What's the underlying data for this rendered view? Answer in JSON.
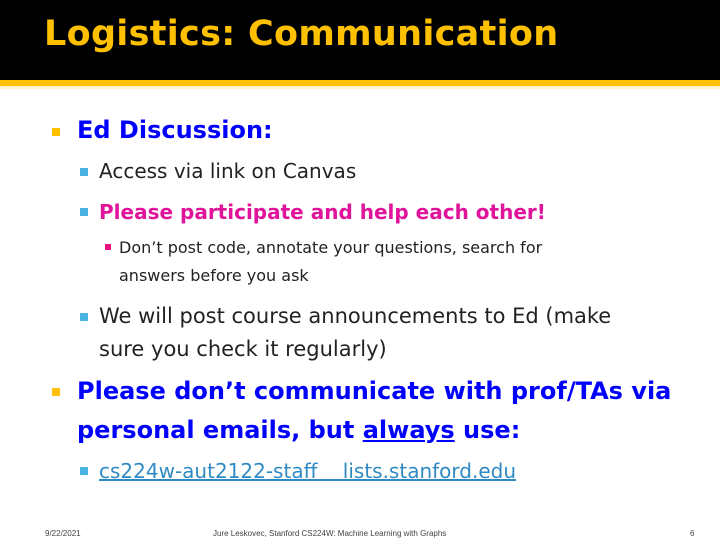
{
  "slide": {
    "title": "Logistics: Communication",
    "bullets": {
      "ed_heading": "Ed Discussion:",
      "access": "Access via link on Canvas",
      "participate": "Please participate and help each other!",
      "dont_post_line1": "Don’t post code, annotate your questions, search for",
      "dont_post_line2": "answers before you ask",
      "announce_line1": "We will post course announcements to Ed (make",
      "announce_line2": "sure you check it regularly)",
      "emails_line1": "Please don’t communicate with prof/TAs via",
      "emails_line2_pre": "personal emails, but ",
      "emails_line2_always": "always",
      "emails_line2_post": " use:",
      "staff_list": "cs224w-aut2122-staff    lists.stanford.edu"
    },
    "footer": {
      "date": "9/22/2021",
      "credit": "Jure Leskovec, Stanford CS224W: Machine Learning with Graphs",
      "page": "6"
    },
    "colors": {
      "title": "#ffc000",
      "heading_blue": "#0000ff",
      "magenta": "#e0139b",
      "link": "#2f8ac4",
      "bullet_l1": "#ffc000",
      "bullet_l2": "#4ab3e3",
      "bullet_l3": "#e8137f"
    }
  }
}
